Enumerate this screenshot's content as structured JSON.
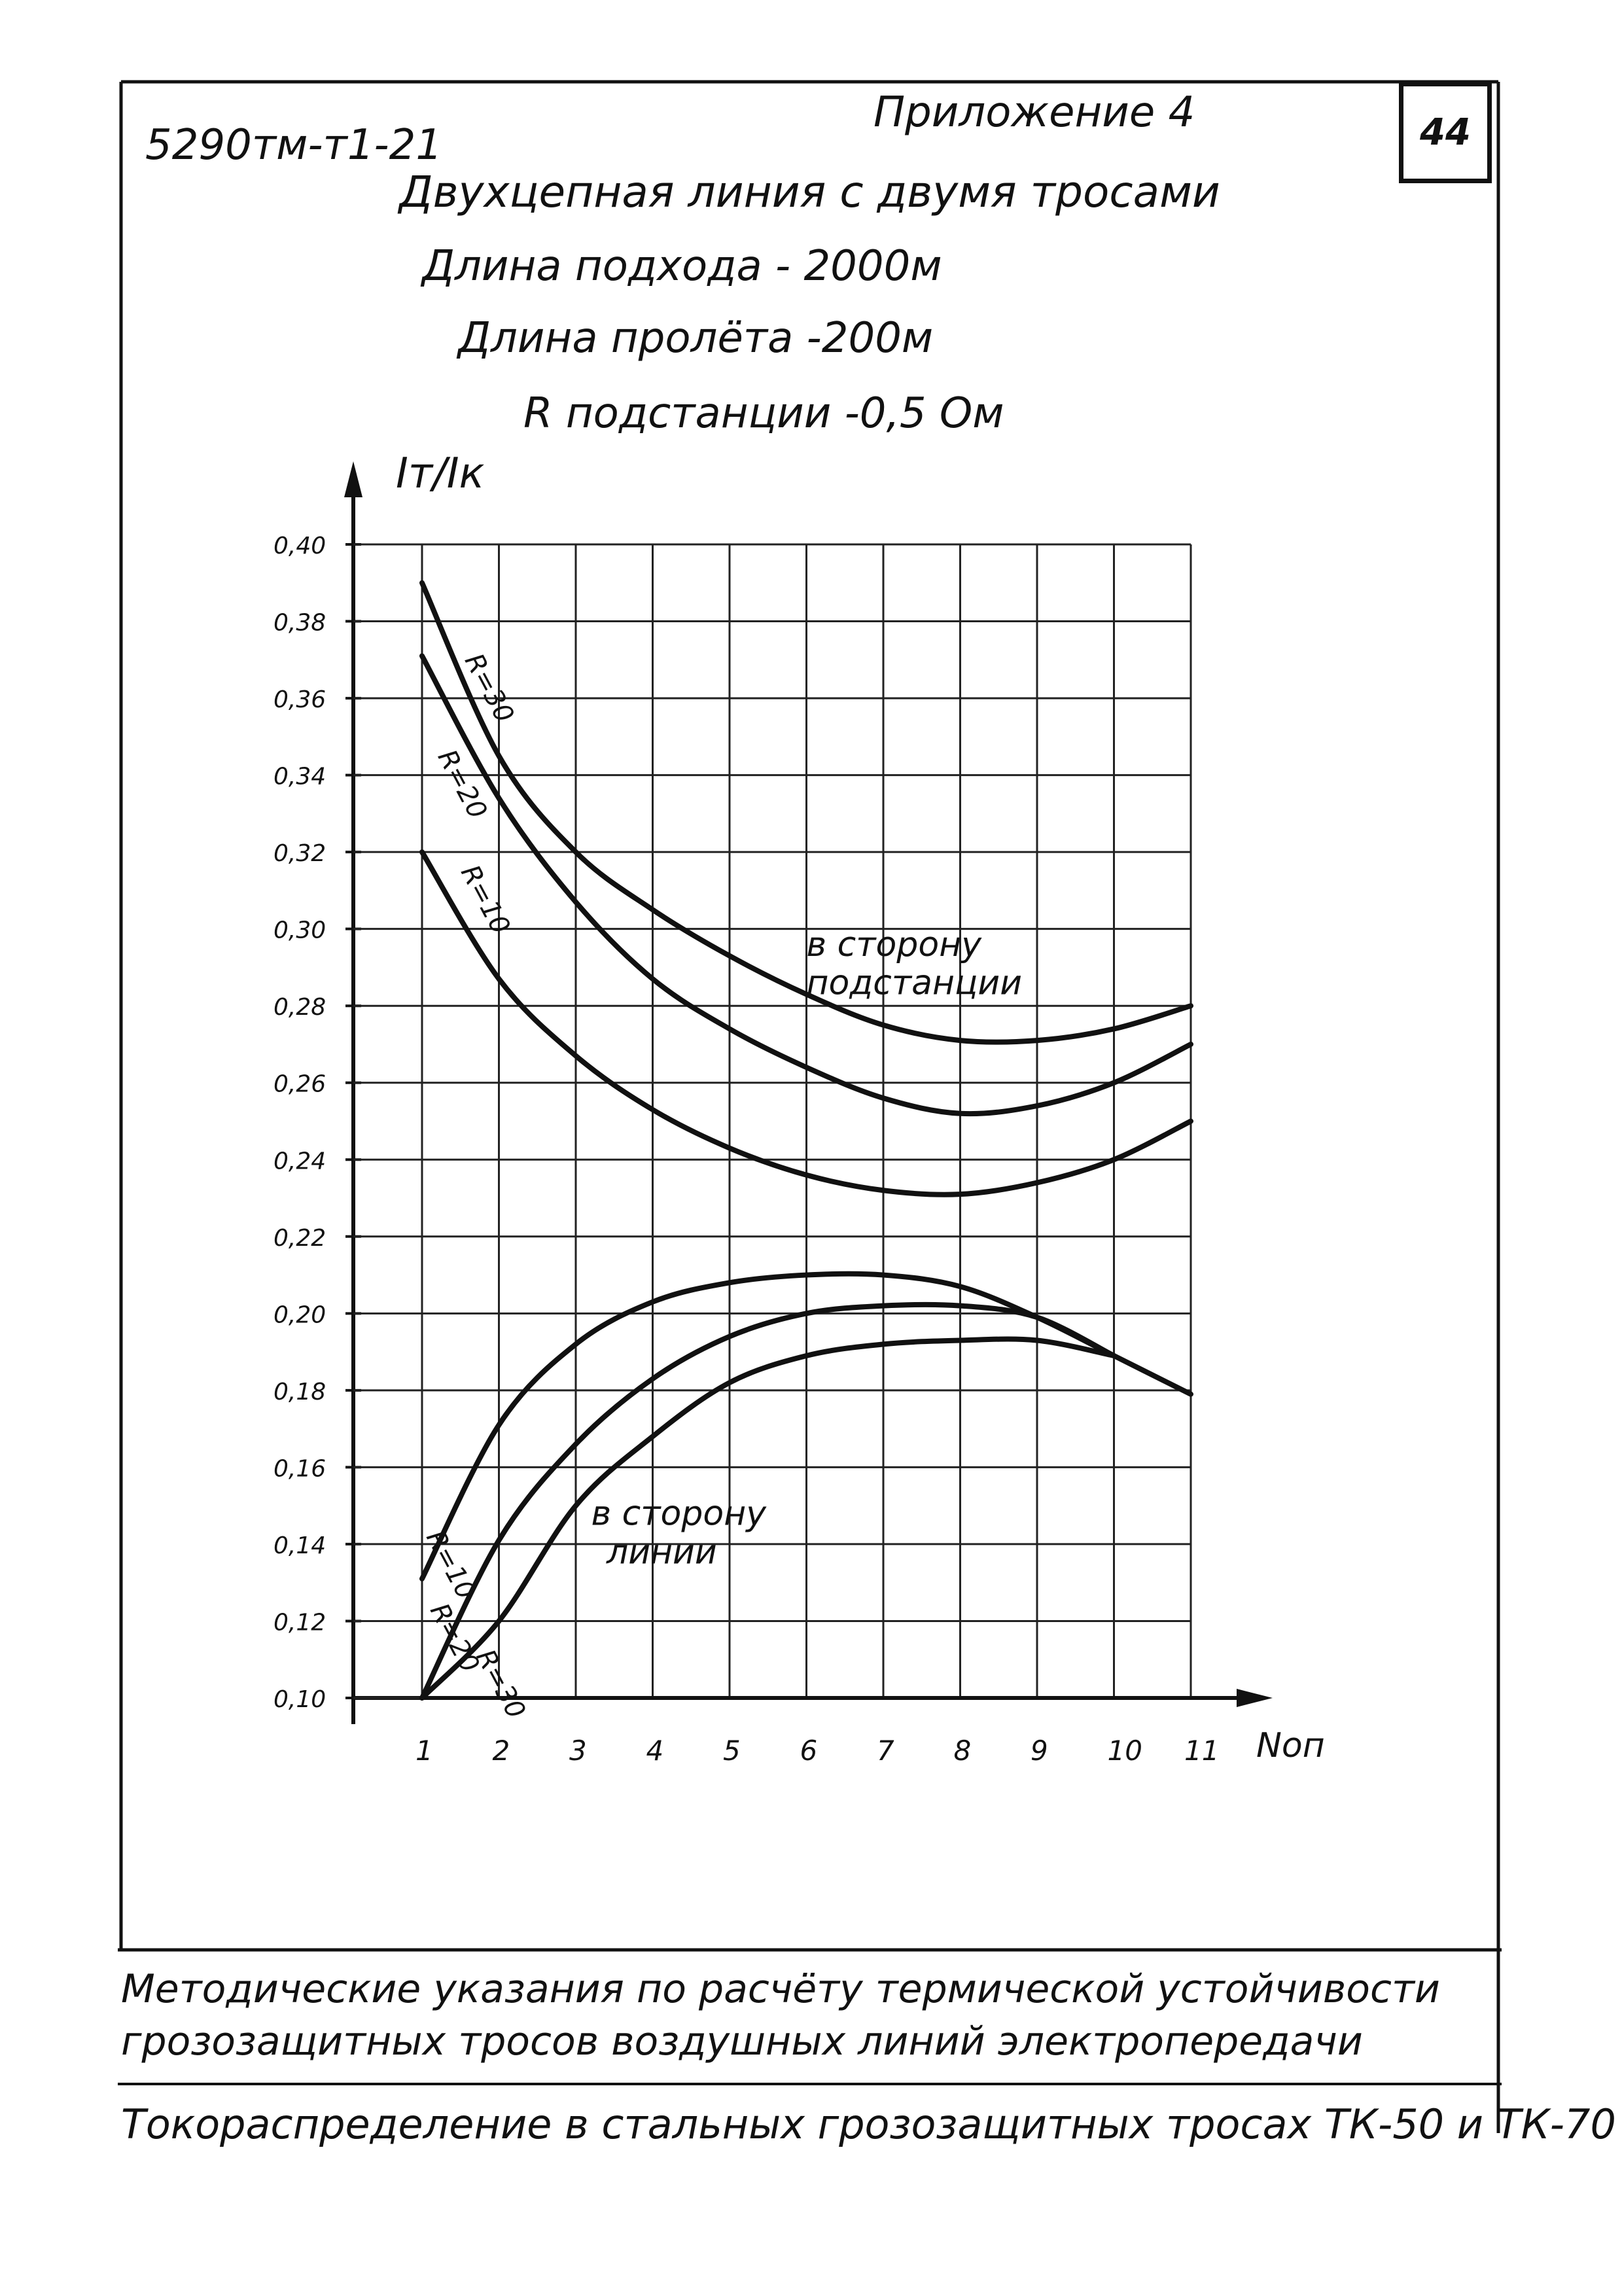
{
  "document": {
    "code": "5290тм-т1-21",
    "appendix": "Приложение 4",
    "page_number": "44",
    "title_lines": [
      "Двухцепная линия с двумя тросами",
      "Длина подхода - 2000м",
      "Длина пролёта -200м",
      "R подстанции -0,5 Ом"
    ],
    "footer_lines": [
      "Методические указания по расчёту термической устойчивости",
      "грозозащитных тросов воздушных линий электропередачи",
      "Токораспределение в стальных грозозащитных тросах ТК-50 и ТК-70"
    ]
  },
  "chart_data": {
    "type": "line",
    "ylabel": "Iт/Iк",
    "xlabel": "Nоп",
    "x_ticks": [
      "1",
      "2",
      "3",
      "4",
      "5",
      "6",
      "7",
      "8",
      "9",
      "10",
      "11"
    ],
    "y_ticks": [
      "0,10",
      "0,12",
      "0,14",
      "0,16",
      "0,18",
      "0,20",
      "0,22",
      "0,24",
      "0,26",
      "0,28",
      "0,30",
      "0,32",
      "0,34",
      "0,36",
      "0,38",
      "0,40"
    ],
    "xlim": [
      1,
      11
    ],
    "ylim": [
      0.1,
      0.4
    ],
    "grid": true,
    "annotations": [
      {
        "text": "в сторону",
        "x": 6.0,
        "y": 0.293
      },
      {
        "text": "подстанции",
        "x": 6.0,
        "y": 0.283
      },
      {
        "text": "в сторону",
        "x": 3.2,
        "y": 0.145
      },
      {
        "text": "линии",
        "x": 3.4,
        "y": 0.135
      }
    ],
    "series": [
      {
        "name": "R=30",
        "group": "в сторону подстанции",
        "label": "R=30",
        "label_at": {
          "x": 1.55,
          "y": 0.37
        },
        "x": [
          1,
          2,
          3,
          4,
          5,
          6,
          7,
          8,
          9,
          10,
          11
        ],
        "y": [
          0.39,
          0.345,
          0.32,
          0.305,
          0.293,
          0.283,
          0.275,
          0.271,
          0.271,
          0.274,
          0.28
        ]
      },
      {
        "name": "R=20",
        "group": "в сторону подстанции",
        "label": "R=20",
        "label_at": {
          "x": 1.2,
          "y": 0.345
        },
        "x": [
          1,
          2,
          3,
          4,
          5,
          6,
          7,
          8,
          9,
          10,
          11
        ],
        "y": [
          0.371,
          0.334,
          0.307,
          0.287,
          0.274,
          0.264,
          0.256,
          0.252,
          0.254,
          0.26,
          0.27
        ]
      },
      {
        "name": "R=10",
        "group": "в сторону подстанции",
        "label": "R=10",
        "label_at": {
          "x": 1.5,
          "y": 0.315
        },
        "x": [
          1,
          2,
          3,
          4,
          5,
          6,
          7,
          8,
          9,
          10,
          11
        ],
        "y": [
          0.32,
          0.287,
          0.267,
          0.253,
          0.243,
          0.236,
          0.232,
          0.231,
          0.234,
          0.24,
          0.25
        ]
      },
      {
        "name": "R=10 линии",
        "group": "в сторону линии",
        "label": "R=10",
        "label_at": {
          "x": 1.05,
          "y": 0.142
        },
        "x": [
          1,
          2,
          3,
          4,
          5,
          6,
          7,
          8,
          9,
          10,
          11
        ],
        "y": [
          0.131,
          0.171,
          0.192,
          0.203,
          0.208,
          0.21,
          0.21,
          0.207,
          0.199,
          0.189,
          0.179
        ]
      },
      {
        "name": "R=20 линии",
        "group": "в сторону линии",
        "label": "R=20",
        "label_at": {
          "x": 1.1,
          "y": 0.123
        },
        "x": [
          1,
          2,
          3,
          4,
          5,
          6,
          7,
          8,
          9,
          10
        ],
        "y": [
          0.1,
          0.141,
          0.166,
          0.183,
          0.194,
          0.2,
          0.202,
          0.202,
          0.199,
          0.189
        ]
      },
      {
        "name": "R=30 линии",
        "group": "в сторону линии",
        "label": "R=30",
        "label_at": {
          "x": 1.7,
          "y": 0.111
        },
        "x": [
          1,
          2,
          3,
          4,
          5,
          6,
          7,
          8,
          9,
          10
        ],
        "y": [
          0.1,
          0.12,
          0.15,
          0.168,
          0.182,
          0.189,
          0.192,
          0.193,
          0.193,
          0.189
        ]
      }
    ]
  }
}
